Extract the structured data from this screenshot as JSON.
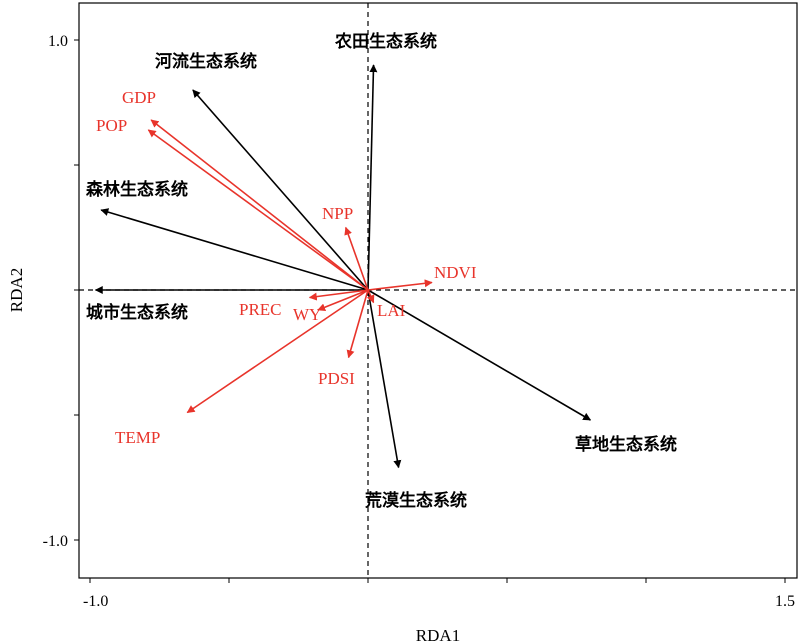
{
  "chart_data": {
    "type": "biplot",
    "xlabel": "RDA1",
    "ylabel": "RDA2",
    "xlim": [
      -1.0,
      1.5
    ],
    "ylim": [
      -1.0,
      1.0
    ],
    "xtick_labels": [
      {
        "value": -1.0,
        "label": "-1.0"
      },
      {
        "value": 1.5,
        "label": "1.5"
      }
    ],
    "ytick_labels": [
      {
        "value": 1.0,
        "label": "1.0"
      },
      {
        "value": -1.0,
        "label": "-1.0"
      }
    ],
    "reference_lines": {
      "x": 0,
      "y": 0,
      "style": "dashed"
    },
    "colors": {
      "ecosystem": "#000000",
      "factor": "#e8342b"
    },
    "series": [
      {
        "name": "",
        "color": "#000000",
        "arrows": [
          {
            "label": "河流生态系统",
            "x": -0.63,
            "y": 0.8
          },
          {
            "label": "农田生态系统",
            "x": 0.02,
            "y": 0.9
          },
          {
            "label": "森林生态系统",
            "x": -0.96,
            "y": 0.32
          },
          {
            "label": "城市生态系统",
            "x": -0.98,
            "y": 0.0
          },
          {
            "label": "草地生态系统",
            "x": 0.8,
            "y": -0.52
          },
          {
            "label": "荒漠生态系统",
            "x": 0.11,
            "y": -0.71
          }
        ]
      },
      {
        "name": "",
        "color": "#e8342b",
        "arrows": [
          {
            "label": "GDP",
            "x": -0.78,
            "y": 0.68
          },
          {
            "label": "POP",
            "x": -0.79,
            "y": 0.64
          },
          {
            "label": "NPP",
            "x": -0.08,
            "y": 0.25
          },
          {
            "label": "NDVI",
            "x": 0.23,
            "y": 0.03
          },
          {
            "label": "PREC",
            "x": -0.21,
            "y": -0.03
          },
          {
            "label": "WY",
            "x": -0.18,
            "y": -0.08
          },
          {
            "label": "LAI",
            "x": 0.02,
            "y": -0.05
          },
          {
            "label": "PDSI",
            "x": -0.07,
            "y": -0.27
          },
          {
            "label": "TEMP",
            "x": -0.65,
            "y": -0.49
          }
        ]
      }
    ]
  }
}
